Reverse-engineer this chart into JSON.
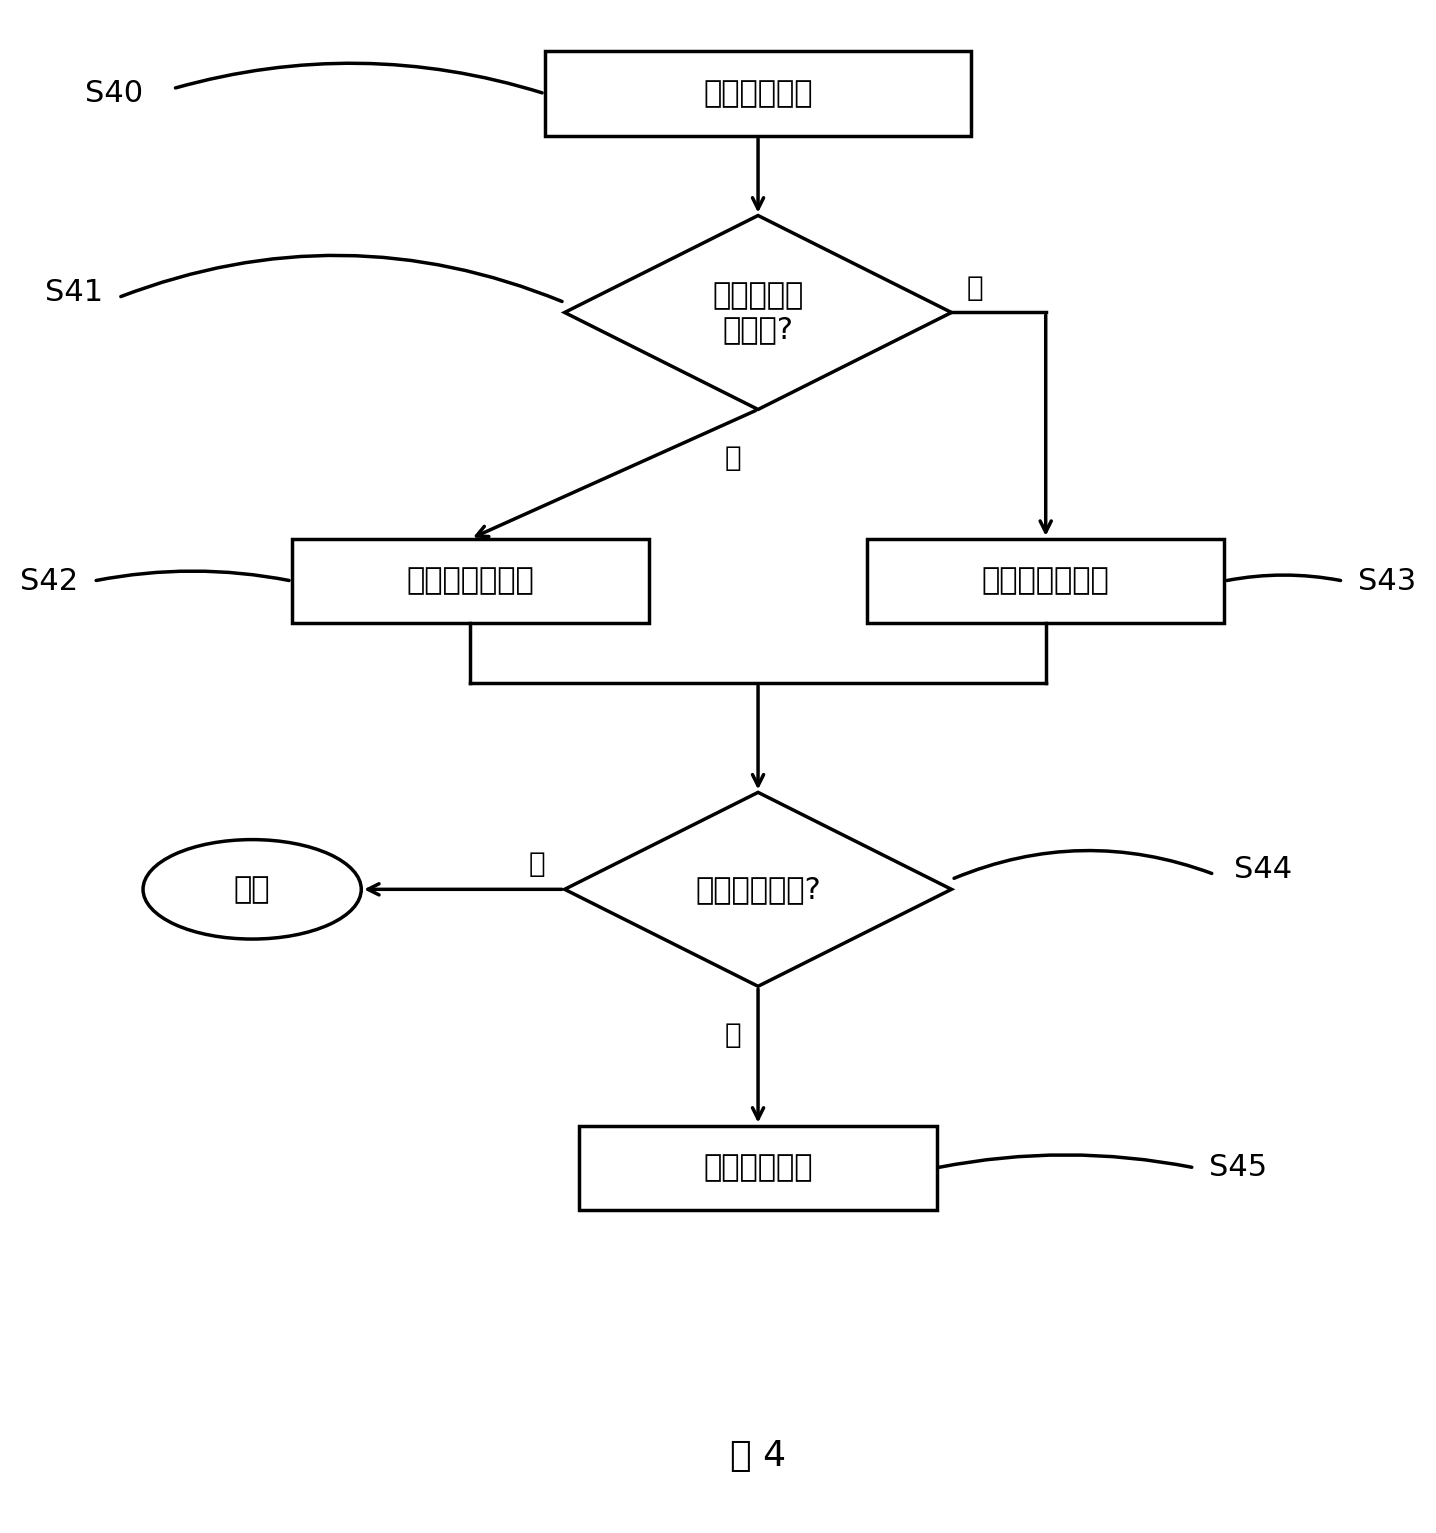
{
  "title": "图 4",
  "background_color": "#ffffff",
  "S40_text": "检测环境温度",
  "S41_text": "是否高于即\n定温度?",
  "S42_text": "以第四速度取纸",
  "S43_text": "以第五速度取纸",
  "S44_text": "取纸是否成功?",
  "end_text": "结束",
  "S45_text": "第六速度取纸",
  "yes_text": "是",
  "no_text": "否",
  "label_S40": "S40",
  "label_S41": "S41",
  "label_S42": "S42",
  "label_S43": "S43",
  "label_S44": "S44",
  "label_S45": "S45",
  "fontsize": 22,
  "label_fontsize": 22,
  "ann_fontsize": 20
}
